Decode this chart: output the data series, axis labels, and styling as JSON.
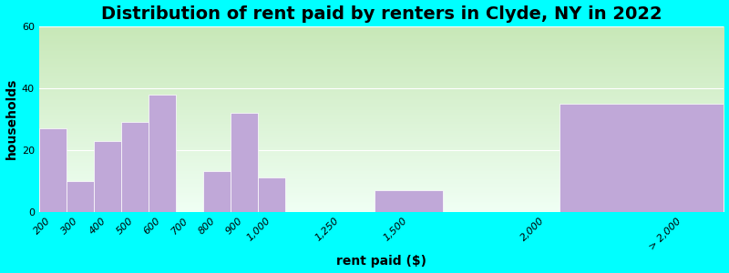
{
  "title": "Distribution of rent paid by renters in Clyde, NY in 2022",
  "xlabel": "rent paid ($)",
  "ylabel": "households",
  "tick_labels": [
    "200",
    "300",
    "400",
    "500",
    "600",
    "700",
    "800",
    "900",
    "1,000",
    "1,250",
    "1,500",
    "2,000",
    "> 2,000"
  ],
  "tick_positions": [
    200,
    300,
    400,
    500,
    600,
    700,
    800,
    900,
    1000,
    1250,
    1500,
    2000,
    2500
  ],
  "bar_lefts": [
    150,
    250,
    350,
    450,
    550,
    650,
    750,
    850,
    950,
    1125,
    1375,
    1750,
    2050
  ],
  "bar_widths": [
    100,
    100,
    100,
    100,
    100,
    100,
    100,
    100,
    100,
    250,
    250,
    500,
    600
  ],
  "bar_heights": [
    27,
    10,
    23,
    29,
    38,
    0,
    13,
    32,
    11,
    0,
    7,
    0,
    35
  ],
  "bar_color": "#c0a8d8",
  "bar_edgecolor": "#ffffff",
  "ylim": [
    0,
    60
  ],
  "yticks": [
    0,
    20,
    40,
    60
  ],
  "outer_bg": "#00ffff",
  "grad_top_color": "#c8e8b8",
  "grad_bottom_color": "#f0fff4",
  "title_fontsize": 14,
  "axis_label_fontsize": 10,
  "tick_fontsize": 8
}
